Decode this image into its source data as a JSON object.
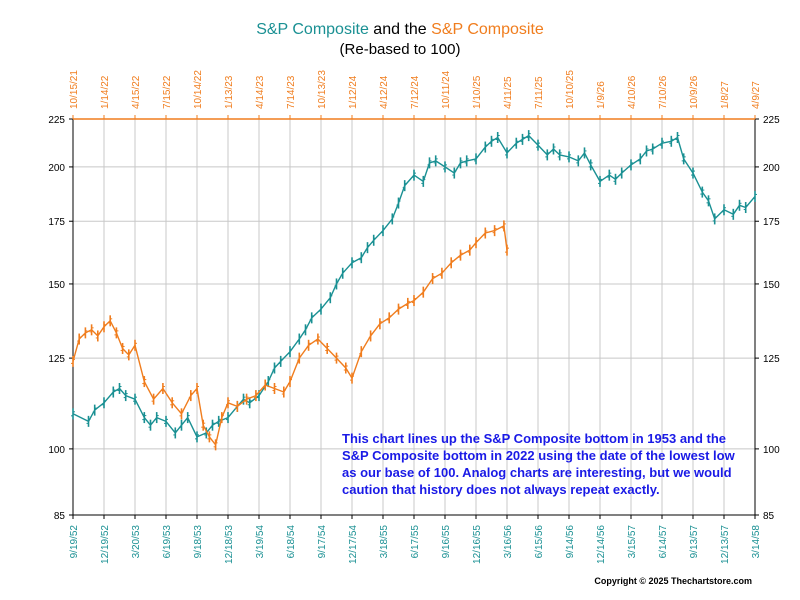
{
  "header": {
    "title_part1": "S&P Composite",
    "title_part2": " and the ",
    "title_part3": "S&P Composite",
    "subtitle": "(Re-based to 100)"
  },
  "annotation": "This chart lines up the S&P Composite bottom in 1953 and the S&P Composite bottom in 2022 using the date of the lowest low as our base of 100.  Analog charts are interesting, but we would caution that history does not always repeat exactly.",
  "copyright": "Copyright © 2025 Thechartstore.com",
  "colors": {
    "teal": "#1a9093",
    "orange": "#f07d1e",
    "grid": "#c8c8c8",
    "note": "#1a1ae6"
  },
  "chart_data": {
    "type": "line",
    "title": "S&P Composite and the S&P Composite (Re-based to 100)",
    "y_scale": "log",
    "ylim": [
      85,
      225
    ],
    "y_ticks": [
      85,
      100,
      125,
      150,
      175,
      200,
      225
    ],
    "y_tick_labels": [
      "85",
      "100",
      "125",
      "150",
      "175",
      "200",
      "225"
    ],
    "x_bottom_labels": [
      "9/19/52",
      "12/19/52",
      "3/20/53",
      "6/19/53",
      "9/18/53",
      "12/18/53",
      "3/19/54",
      "6/18/54",
      "9/17/54",
      "12/17/54",
      "3/18/55",
      "6/17/55",
      "9/16/55",
      "12/16/55",
      "3/16/56",
      "6/15/56",
      "9/14/56",
      "12/14/56",
      "3/15/57",
      "6/14/57",
      "9/13/57",
      "12/13/57",
      "3/14/58"
    ],
    "x_top_labels": [
      "10/15/21",
      "1/14/22",
      "4/15/22",
      "7/15/22",
      "10/14/22",
      "1/13/23",
      "4/14/23",
      "7/14/23",
      "10/13/23",
      "1/12/24",
      "4/12/24",
      "7/12/24",
      "10/11/24",
      "1/10/25",
      "4/11/25",
      "7/11/25",
      "10/10/25",
      "1/9/26",
      "4/10/26",
      "7/10/26",
      "10/9/26",
      "1/8/27",
      "4/9/27"
    ],
    "grid": true,
    "series": [
      {
        "name": "S&P Composite",
        "axis": "bottom",
        "color": "#1a9093",
        "x_index": [
          0.0,
          0.5,
          0.7,
          1.0,
          1.3,
          1.5,
          1.7,
          2.0,
          2.3,
          2.5,
          2.7,
          3.0,
          3.3,
          3.5,
          3.7,
          4.0,
          4.3,
          4.5,
          4.7,
          5.0,
          5.3,
          5.5,
          5.7,
          6.0,
          6.3,
          6.5,
          6.7,
          7.0,
          7.3,
          7.5,
          7.7,
          8.0,
          8.3,
          8.5,
          8.7,
          9.0,
          9.3,
          9.5,
          9.7,
          10.0,
          10.3,
          10.5,
          10.7,
          11.0,
          11.3,
          11.5,
          11.7,
          12.0,
          12.3,
          12.5,
          12.7,
          13.0,
          13.3,
          13.5,
          13.7,
          14.0,
          14.3,
          14.5,
          14.7,
          15.0,
          15.3,
          15.5,
          15.7,
          16.0,
          16.3,
          16.5,
          16.7,
          17.0,
          17.3,
          17.5,
          17.7,
          18.0,
          18.3,
          18.5,
          18.7,
          19.0,
          19.3,
          19.5,
          19.7,
          20.0,
          20.3,
          20.5,
          20.7,
          21.0,
          21.3,
          21.5,
          21.7,
          22.0
        ],
        "values": [
          109,
          107,
          110,
          112,
          115,
          116,
          114,
          113,
          108,
          106,
          108,
          107,
          104,
          106,
          108,
          103,
          104,
          106,
          107,
          108,
          111,
          113,
          112,
          114,
          118,
          122,
          124,
          127,
          131,
          134,
          138,
          141,
          145,
          150,
          154,
          158,
          160,
          164,
          167,
          171,
          176,
          183,
          191,
          196,
          193,
          202,
          203,
          200,
          197,
          202,
          203,
          204,
          210,
          213,
          215,
          207,
          212,
          214,
          216,
          211,
          206,
          209,
          206,
          205,
          203,
          207,
          201,
          193,
          196,
          194,
          197,
          201,
          204,
          208,
          209,
          212,
          213,
          215,
          204,
          197,
          188,
          184,
          176,
          180,
          178,
          182,
          181,
          186
        ]
      },
      {
        "name": "S&P Composite",
        "axis": "top",
        "color": "#f07d1e",
        "x_index": [
          0.0,
          0.2,
          0.4,
          0.6,
          0.8,
          1.0,
          1.2,
          1.4,
          1.6,
          1.8,
          2.0,
          2.3,
          2.6,
          2.9,
          3.2,
          3.5,
          3.8,
          4.0,
          4.2,
          4.4,
          4.6,
          4.8,
          5.0,
          5.3,
          5.6,
          5.9,
          6.2,
          6.5,
          6.8,
          7.0,
          7.3,
          7.6,
          7.9,
          8.2,
          8.5,
          8.8,
          9.0,
          9.3,
          9.6,
          9.9,
          10.2,
          10.5,
          10.8,
          11.0,
          11.3,
          11.6,
          11.9,
          12.2,
          12.5,
          12.8,
          13.0,
          13.3,
          13.6,
          13.9,
          14.0
        ],
        "values": [
          124,
          131,
          133,
          134,
          132,
          135,
          137,
          133,
          128,
          126,
          129,
          118,
          113,
          116,
          112,
          109,
          114,
          116,
          106,
          103,
          101,
          108,
          112,
          111,
          113,
          114,
          117,
          116,
          115,
          118,
          125,
          129,
          131,
          128,
          125,
          122,
          119,
          127,
          132,
          136,
          138,
          141,
          143,
          144,
          147,
          152,
          154,
          158,
          161,
          163,
          166,
          170,
          171,
          173,
          163
        ]
      }
    ]
  }
}
